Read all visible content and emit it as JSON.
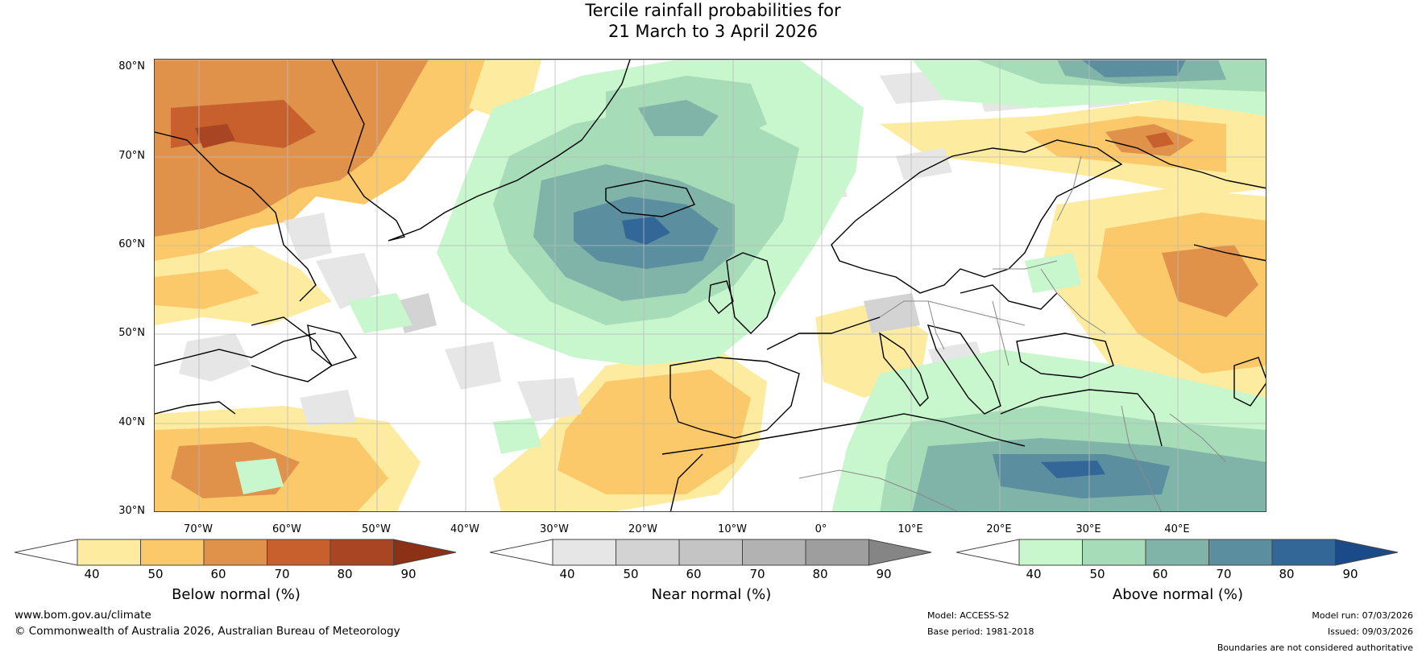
{
  "title": {
    "line1": "Tercile rainfall probabilities for",
    "line2": "21 March to 3 April 2026"
  },
  "map": {
    "lat_labels": [
      "80°N",
      "70°N",
      "60°N",
      "50°N",
      "40°N",
      "30°N"
    ],
    "lon_labels": [
      "70°W",
      "60°W",
      "50°W",
      "40°W",
      "30°W",
      "20°W",
      "10°W",
      "0°",
      "10°E",
      "20°E",
      "30°E",
      "40°E"
    ],
    "colors": {
      "below": [
        "#fdeba0",
        "#fbc96a",
        "#e0924a",
        "#c8602e",
        "#aa4523",
        "#8c3016"
      ],
      "near": [
        "#e6e6e6",
        "#d3d3d3",
        "#c4c4c4",
        "#b2b2b2",
        "#9e9e9e",
        "#858585"
      ],
      "above": [
        "#c8f7cd",
        "#a7dcb8",
        "#80b4a8",
        "#5b8fa0",
        "#336797",
        "#1a4a87"
      ],
      "coast": "#000000",
      "border": "#888888",
      "grid": "#bbbbbb"
    }
  },
  "colorbars": {
    "below": {
      "ticks": [
        "40",
        "50",
        "60",
        "70",
        "80",
        "90"
      ],
      "label": "Below normal (%)"
    },
    "near": {
      "ticks": [
        "40",
        "50",
        "60",
        "70",
        "80",
        "90"
      ],
      "label": "Near normal (%)"
    },
    "above": {
      "ticks": [
        "40",
        "50",
        "60",
        "70",
        "80",
        "90"
      ],
      "label": "Above normal (%)"
    }
  },
  "footer": {
    "url": "www.bom.gov.au/climate",
    "copyright": "© Commonwealth of Australia 2026, Australian Bureau of Meteorology",
    "model": "Model: ACCESS-S2",
    "base_period": "Base period: 1981-2018",
    "model_run": "Model run: 07/03/2026",
    "issued": "Issued: 09/03/2026",
    "disclaimer": "Boundaries are not considered authoritative"
  }
}
